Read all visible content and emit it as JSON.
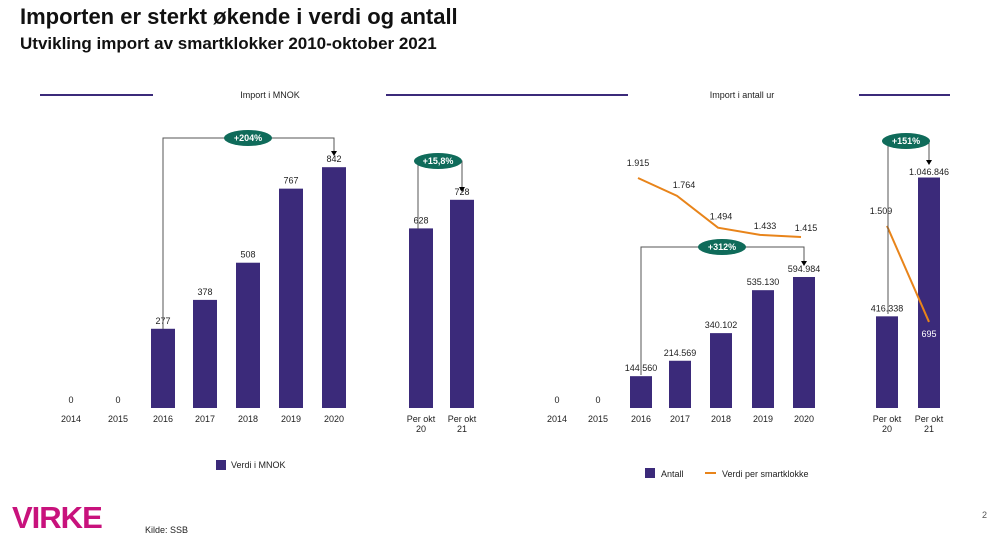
{
  "title": "Importen er sterkt økende i verdi og antall",
  "subtitle": "Utvikling import av smartklokker 2010-oktober 2021",
  "source": "Kilde: SSB",
  "logo": "VIRKE",
  "page_number": "2",
  "colors": {
    "bar": "#3b2a7a",
    "line": "#e8841a",
    "badge": "#0f6b5a",
    "rule": "#3b2a7a"
  },
  "chart_data": [
    {
      "type": "bar",
      "title": "Import i MNOK",
      "categories": [
        "2014",
        "2015",
        "2016",
        "2017",
        "2018",
        "2019",
        "2020",
        "Per okt 20",
        "Per okt 21"
      ],
      "series": [
        {
          "name": "Verdi i MNOK",
          "values": [
            0,
            0,
            277,
            378,
            508,
            767,
            842,
            628,
            728
          ]
        }
      ],
      "value_labels": [
        "0",
        "0",
        "277",
        "378",
        "508",
        "767",
        "842",
        "628",
        "728"
      ],
      "annotations": [
        "+204%",
        "+15,8%"
      ],
      "legend": "bottom"
    },
    {
      "type": "bar",
      "title": "Import i antall ur",
      "categories": [
        "2014",
        "2015",
        "2016",
        "2017",
        "2018",
        "2019",
        "2020",
        "Per okt 20",
        "Per okt 21"
      ],
      "series": [
        {
          "name": "Antall",
          "values": [
            0,
            0,
            144560,
            214569,
            340102,
            535130,
            594984,
            416338,
            1046846
          ]
        },
        {
          "name": "Verdi per smartklokke",
          "type": "line",
          "values": [
            null,
            null,
            1915,
            1764,
            1494,
            1433,
            1415,
            1509,
            695
          ]
        }
      ],
      "value_labels": [
        "0",
        "0",
        "144.560",
        "214.569",
        "340.102",
        "535.130",
        "594.984",
        "416.338",
        "1.046.846"
      ],
      "line_labels": [
        "",
        "",
        "1.915",
        "1.764",
        "1.494",
        "1.433",
        "1.415",
        "1.509",
        "695"
      ],
      "annotations": [
        "+312%",
        "+151%"
      ],
      "legend": "bottom"
    }
  ]
}
